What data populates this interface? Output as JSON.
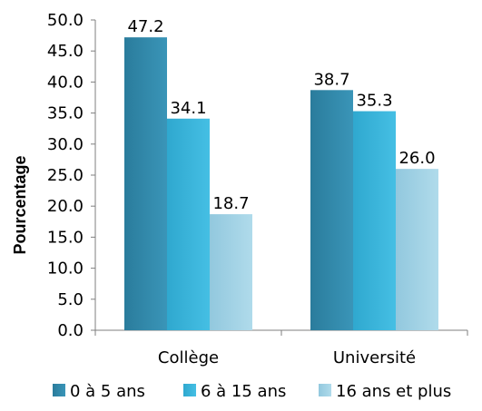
{
  "chart_data": {
    "type": "bar",
    "ylabel": "Pourcentage",
    "xlabel": "",
    "ylim": [
      0,
      50
    ],
    "y_ticks": [
      "0.0",
      "5.0",
      "10.0",
      "15.0",
      "20.0",
      "25.0",
      "30.0",
      "35.0",
      "40.0",
      "45.0",
      "50.0"
    ],
    "categories": [
      "Collège",
      "Université"
    ],
    "series": [
      {
        "name": "0 à 5 ans",
        "values": [
          47.2,
          38.7
        ],
        "labels": [
          "47.2",
          "38.7"
        ],
        "color": "#2e86a8"
      },
      {
        "name": "6 à 15 ans",
        "values": [
          34.1,
          35.3
        ],
        "labels": [
          "34.1",
          "35.3"
        ],
        "color": "#35b3d9"
      },
      {
        "name": "16 ans et plus",
        "values": [
          18.7,
          26.0
        ],
        "labels": [
          "18.7",
          "26.0"
        ],
        "color": "#9fd1e4"
      }
    ],
    "legend_position": "bottom",
    "grid": false
  }
}
